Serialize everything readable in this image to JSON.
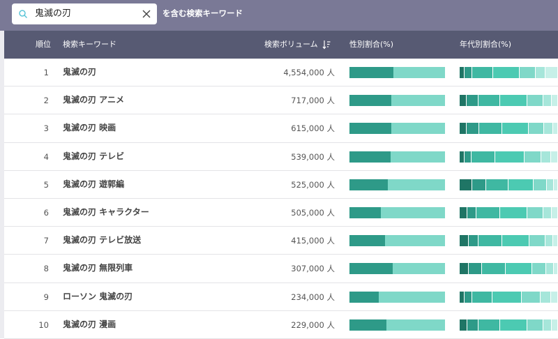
{
  "search": {
    "value": "鬼滅の刃",
    "contains_label": "を含む検索キーワード"
  },
  "table": {
    "headers": {
      "rank": "順位",
      "keyword": "検索キーワード",
      "volume": "検索ボリューム",
      "gender": "性別割合(%)",
      "age": "年代別割合(%)"
    },
    "colors": {
      "gender_male": "#2e9a88",
      "gender_female": "#7fd8c8",
      "age_segments": [
        "#1f7565",
        "#2e9a88",
        "#3fb8a2",
        "#4ccab2",
        "#7fd8c8",
        "#a6e6da",
        "#c7f0e8"
      ]
    },
    "rows": [
      {
        "rank": "1",
        "keyword": "鬼滅の刃",
        "volume": "4,554,000 人",
        "gender_male": 0.46,
        "age": [
          0.05,
          0.08,
          0.21,
          0.27,
          0.16,
          0.1,
          0.13
        ]
      },
      {
        "rank": "2",
        "keyword": "鬼滅の刃 アニメ",
        "volume": "717,000 人",
        "gender_male": 0.44,
        "age": [
          0.07,
          0.12,
          0.22,
          0.28,
          0.16,
          0.09,
          0.06
        ]
      },
      {
        "rank": "3",
        "keyword": "鬼滅の刃 映画",
        "volume": "615,000 人",
        "gender_male": 0.44,
        "age": [
          0.07,
          0.13,
          0.23,
          0.27,
          0.16,
          0.09,
          0.05
        ]
      },
      {
        "rank": "4",
        "keyword": "鬼滅の刃 テレビ",
        "volume": "539,000 人",
        "gender_male": 0.43,
        "age": [
          0.05,
          0.07,
          0.24,
          0.3,
          0.17,
          0.1,
          0.07
        ]
      },
      {
        "rank": "5",
        "keyword": "鬼滅の刃 遊郭編",
        "volume": "525,000 人",
        "gender_male": 0.4,
        "age": [
          0.13,
          0.14,
          0.23,
          0.25,
          0.14,
          0.07,
          0.04
        ]
      },
      {
        "rank": "6",
        "keyword": "鬼滅の刃 キャラクター",
        "volume": "505,000 人",
        "gender_male": 0.33,
        "age": [
          0.08,
          0.09,
          0.24,
          0.28,
          0.16,
          0.09,
          0.06
        ]
      },
      {
        "rank": "7",
        "keyword": "鬼滅の刃 テレビ放送",
        "volume": "415,000 人",
        "gender_male": 0.37,
        "age": [
          0.09,
          0.1,
          0.24,
          0.28,
          0.16,
          0.08,
          0.05
        ]
      },
      {
        "rank": "8",
        "keyword": "鬼滅の刃 無限列車",
        "volume": "307,000 人",
        "gender_male": 0.45,
        "age": [
          0.09,
          0.14,
          0.24,
          0.27,
          0.14,
          0.08,
          0.04
        ]
      },
      {
        "rank": "9",
        "keyword": "ローソン 鬼滅の刃",
        "volume": "234,000 人",
        "gender_male": 0.31,
        "age": [
          0.05,
          0.08,
          0.2,
          0.3,
          0.19,
          0.11,
          0.07
        ]
      },
      {
        "rank": "10",
        "keyword": "鬼滅の刃 漫画",
        "volume": "229,000 人",
        "gender_male": 0.39,
        "age": [
          0.08,
          0.11,
          0.22,
          0.28,
          0.16,
          0.09,
          0.06
        ]
      }
    ]
  }
}
